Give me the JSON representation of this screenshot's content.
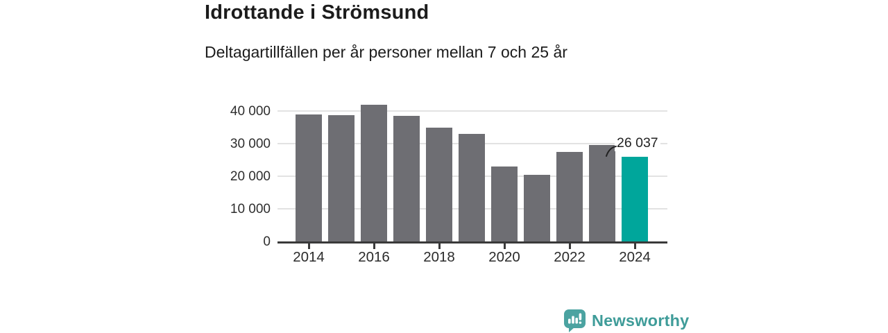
{
  "header": {
    "title": "Idrottande i Strömsund",
    "subtitle": "Deltagartillfällen per år personer mellan 7 och 25 år"
  },
  "chart_data": {
    "type": "bar",
    "title": "Idrottande i Strömsund",
    "subtitle": "Deltagartillfällen per år personer mellan 7 och 25 år",
    "categories": [
      2014,
      2015,
      2016,
      2017,
      2018,
      2019,
      2020,
      2021,
      2022,
      2023,
      2024
    ],
    "values": [
      39000,
      38800,
      42000,
      38600,
      35000,
      32900,
      23000,
      20400,
      27500,
      29500,
      26037
    ],
    "ylim": [
      0,
      40000
    ],
    "y_ticks": [
      {
        "value": 0,
        "label": "0"
      },
      {
        "value": 10000,
        "label": "10 000"
      },
      {
        "value": 20000,
        "label": "20 000"
      },
      {
        "value": 30000,
        "label": "30 000"
      },
      {
        "value": 40000,
        "label": "40 000"
      }
    ],
    "x_tick_labels": [
      "2014",
      "2016",
      "2018",
      "2020",
      "2022",
      "2024"
    ],
    "grid": true,
    "legend": "none",
    "highlight_index": 10,
    "annotation": {
      "text": "26 037",
      "bar_index": 10
    },
    "colors": {
      "bar": "#6e6e73",
      "highlight": "#00a69b",
      "gridline": "#e2e2e2",
      "axis": "#3a3a3a",
      "tick_text": "#2e2e2e"
    }
  },
  "footer": {
    "logo_text": "Newsworthy",
    "logo_icon": "bar-chart-speech-bubble-icon",
    "logo_colors": {
      "icon": "#4ba3a1",
      "text": "#3f9c99"
    }
  }
}
